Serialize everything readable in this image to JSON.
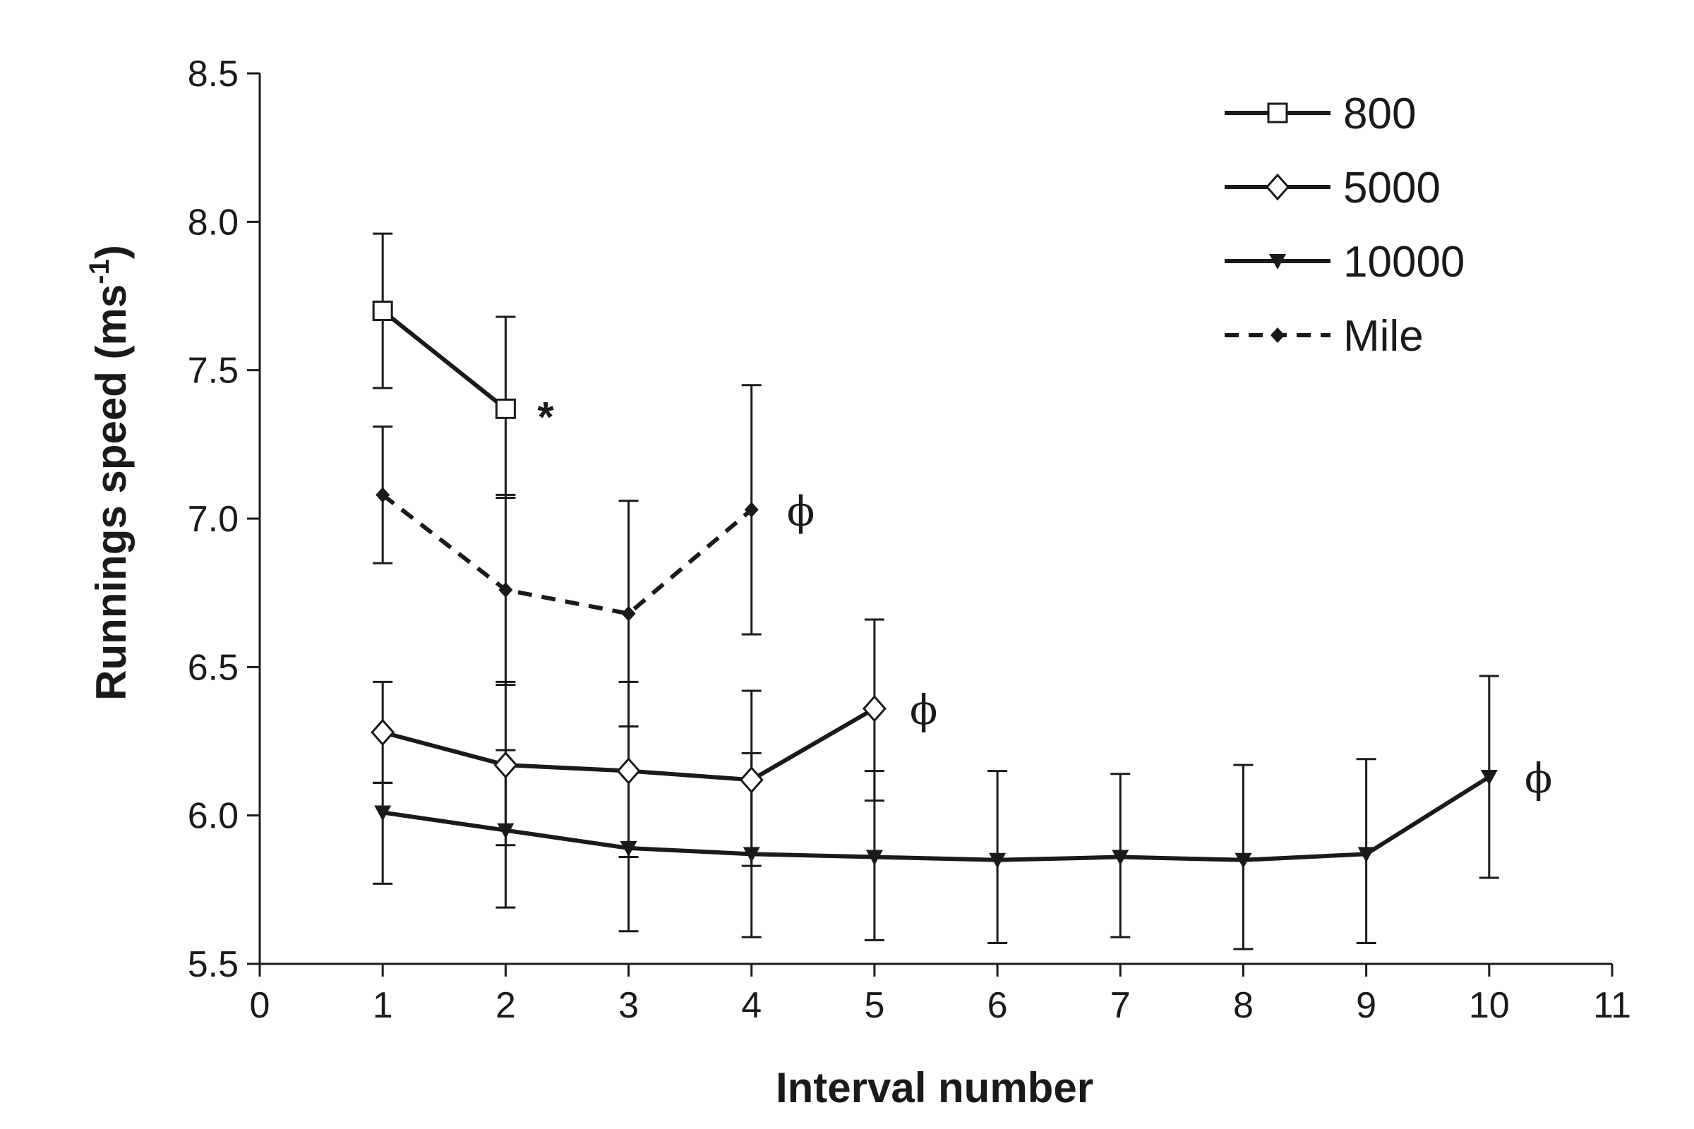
{
  "chart_data": {
    "type": "line",
    "xlabel": "Interval number",
    "ylabel": "Runnings speed (ms",
    "ylabel_superscript": "-1",
    "ylabel_suffix": ")",
    "xlim": [
      0,
      11
    ],
    "ylim": [
      5.5,
      8.5
    ],
    "x_ticks": [
      "0",
      "1",
      "2",
      "3",
      "4",
      "5",
      "6",
      "7",
      "8",
      "9",
      "10",
      "11"
    ],
    "y_ticks": [
      "5.5",
      "6.0",
      "6.5",
      "7.0",
      "7.5",
      "8.0",
      "8.5"
    ],
    "grid": false,
    "legend_position": "top-right",
    "series": [
      {
        "name": "800",
        "marker": "open-square",
        "line_style": "solid",
        "x": [
          1,
          2
        ],
        "y": [
          7.7,
          7.37
        ],
        "error_upper": [
          7.96,
          7.68
        ],
        "error_lower": [
          7.44,
          7.07
        ],
        "annotation": "*"
      },
      {
        "name": "5000",
        "marker": "open-diamond",
        "line_style": "solid",
        "x": [
          1,
          2,
          3,
          4,
          5
        ],
        "y": [
          6.28,
          6.17,
          6.15,
          6.12,
          6.36
        ],
        "error_upper": [
          6.45,
          6.45,
          6.45,
          6.42,
          6.66
        ],
        "error_lower": [
          6.11,
          5.9,
          5.86,
          5.83,
          6.05
        ],
        "annotation": "ϕ"
      },
      {
        "name": "10000",
        "marker": "filled-triangle-down",
        "line_style": "solid",
        "x": [
          1,
          2,
          3,
          4,
          5,
          6,
          7,
          8,
          9,
          10
        ],
        "y": [
          6.01,
          5.95,
          5.89,
          5.87,
          5.86,
          5.85,
          5.86,
          5.85,
          5.87,
          6.13
        ],
        "error_upper": [
          6.11,
          6.22,
          6.3,
          6.21,
          6.15,
          6.15,
          6.14,
          6.17,
          6.19,
          6.47
        ],
        "error_lower": [
          5.77,
          5.69,
          5.61,
          5.59,
          5.58,
          5.57,
          5.59,
          5.55,
          5.57,
          5.79
        ],
        "annotation": "ϕ"
      },
      {
        "name": "Mile",
        "marker": "filled-diamond",
        "line_style": "dashed",
        "x": [
          1,
          2,
          3,
          4
        ],
        "y": [
          7.08,
          6.76,
          6.68,
          7.03
        ],
        "error_upper": [
          7.31,
          7.08,
          7.06,
          7.45
        ],
        "error_lower": [
          6.85,
          6.44,
          6.3,
          6.61
        ],
        "annotation": "ϕ"
      }
    ]
  }
}
